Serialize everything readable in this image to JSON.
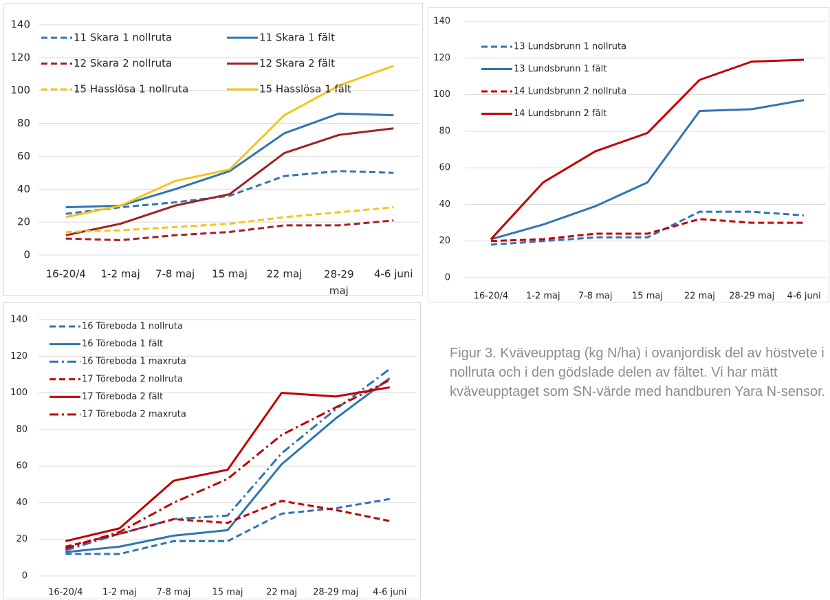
{
  "chart_data": [
    {
      "type": "line",
      "categories": [
        "16-20/4",
        "1-2 maj",
        "7-8 maj",
        "15 maj",
        "22 maj",
        "28-29 maj",
        "4-6 juni"
      ],
      "ylim": [
        0,
        140
      ],
      "yticks": [
        0,
        20,
        40,
        60,
        80,
        100,
        120,
        140
      ],
      "grid": true,
      "legend": "top-left",
      "legend_columns": 2,
      "series": [
        {
          "name": "11 Skara 1 nollruta",
          "color": "#2e75b6",
          "dash": "dashed",
          "values": [
            25,
            29,
            32,
            36,
            48,
            51,
            50
          ]
        },
        {
          "name": "11 Skara 1 fält",
          "color": "#2e75b6",
          "dash": "solid",
          "values": [
            29,
            30,
            40,
            51,
            74,
            86,
            85
          ]
        },
        {
          "name": "12 Skara 2 nollruta",
          "color": "#a31f24",
          "dash": "dashed",
          "values": [
            10,
            9,
            12,
            14,
            18,
            18,
            21
          ]
        },
        {
          "name": "12 Skara 2 fält",
          "color": "#a31f24",
          "dash": "solid",
          "values": [
            12,
            19,
            30,
            37,
            62,
            73,
            77
          ]
        },
        {
          "name": "15 Hasslösa 1 nollruta",
          "color": "#f5c518",
          "dash": "dashed",
          "values": [
            14,
            15,
            17,
            19,
            23,
            26,
            29
          ]
        },
        {
          "name": "15 Hasslösa 1 fält",
          "color": "#f5c518",
          "dash": "solid",
          "values": [
            23,
            30,
            45,
            52,
            85,
            103,
            115
          ]
        }
      ]
    },
    {
      "type": "line",
      "categories": [
        "16-20/4",
        "1-2 maj",
        "7-8 maj",
        "15 maj",
        "22 maj",
        "28-29 maj",
        "4-6 juni"
      ],
      "ylim": [
        0,
        140
      ],
      "yticks": [
        0,
        20,
        40,
        60,
        80,
        100,
        120,
        140
      ],
      "grid": true,
      "legend": "top-left",
      "legend_columns": 1,
      "series": [
        {
          "name": "13 Lundsbrunn 1 nollruta",
          "color": "#2e75b6",
          "dash": "dashed",
          "values": [
            18,
            20,
            22,
            22,
            36,
            36,
            34
          ]
        },
        {
          "name": "13 Lundsbrunn 1 fält",
          "color": "#2e75b6",
          "dash": "solid",
          "values": [
            21,
            29,
            39,
            52,
            91,
            92,
            97
          ]
        },
        {
          "name": "14 Lundsbrunn 2 nollruta",
          "color": "#c00000",
          "dash": "dashed",
          "values": [
            20,
            21,
            24,
            24,
            32,
            30,
            30
          ]
        },
        {
          "name": "14 Lundsbrunn 2 fält",
          "color": "#c00000",
          "dash": "solid",
          "values": [
            21,
            52,
            69,
            79,
            108,
            118,
            119
          ]
        }
      ]
    },
    {
      "type": "line",
      "categories": [
        "16-20/4",
        "1-2 maj",
        "7-8 maj",
        "15 maj",
        "22 maj",
        "28-29 maj",
        "4-6 juni"
      ],
      "ylim": [
        0,
        140
      ],
      "yticks": [
        0,
        20,
        40,
        60,
        80,
        100,
        120,
        140
      ],
      "grid": true,
      "legend": "top-left",
      "legend_columns": 1,
      "series": [
        {
          "name": "16 Töreboda 1 nollruta",
          "color": "#2e75b6",
          "dash": "dashed",
          "values": [
            12,
            12,
            19,
            19,
            34,
            37,
            42
          ]
        },
        {
          "name": "16 Töreboda 1 fält",
          "color": "#2e75b6",
          "dash": "solid",
          "values": [
            13,
            16,
            22,
            25,
            61,
            86,
            108
          ]
        },
        {
          "name": "16 Töreboda 1 maxruta",
          "color": "#2e75b6",
          "dash": "dashdot",
          "values": [
            14,
            23,
            31,
            33,
            67,
            91,
            113
          ]
        },
        {
          "name": "17 Töreboda 2 nollruta",
          "color": "#c00000",
          "dash": "dashed",
          "values": [
            16,
            23,
            31,
            29,
            41,
            36,
            30
          ]
        },
        {
          "name": "17 Töreboda 2 fält",
          "color": "#c00000",
          "dash": "solid",
          "values": [
            19,
            26,
            52,
            58,
            100,
            98,
            103
          ]
        },
        {
          "name": "17 Töreboda 2 maxruta",
          "color": "#c00000",
          "dash": "dashdot",
          "values": [
            15,
            24,
            40,
            53,
            77,
            92,
            107
          ]
        }
      ]
    }
  ],
  "caption": "Figur 3. Kväveupptag (kg N/ha) i ovanjordisk del av höstvete i nollruta och i den gödslade delen av fältet. Vi har mätt kväveupptaget som SN-värde med handburen Yara N-sensor."
}
